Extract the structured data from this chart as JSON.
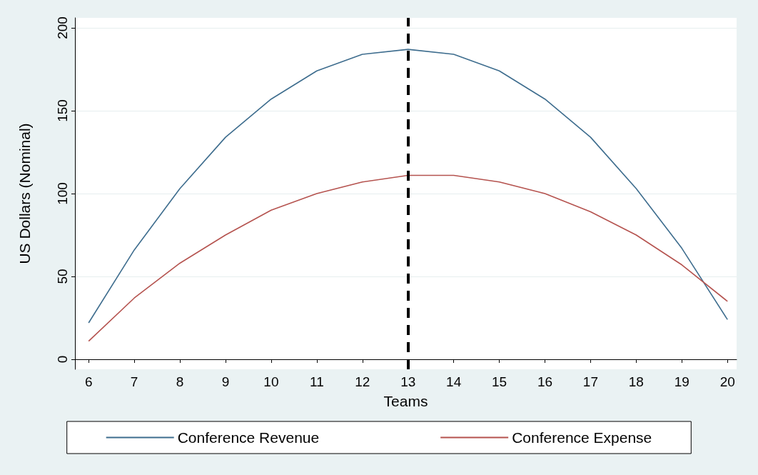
{
  "chart_data": {
    "type": "line",
    "xlabel": "Teams",
    "ylabel": "US Dollars (Nominal)",
    "x": [
      6,
      7,
      8,
      9,
      10,
      11,
      12,
      13,
      14,
      15,
      16,
      17,
      18,
      19,
      20
    ],
    "series": [
      {
        "name": "Conference Revenue",
        "color": "#3e6d8e",
        "values": [
          22,
          66,
          103,
          134,
          157,
          174,
          184,
          187,
          184,
          174,
          157,
          134,
          103,
          67,
          24
        ]
      },
      {
        "name": "Conference Expense",
        "color": "#b5534f",
        "values": [
          11,
          37,
          58,
          75,
          90,
          100,
          107,
          111,
          111,
          107,
          100,
          89,
          75,
          57,
          35
        ]
      }
    ],
    "xlim": [
      5.7,
      20.2
    ],
    "xticks": [
      6,
      7,
      8,
      9,
      10,
      11,
      12,
      13,
      14,
      15,
      16,
      17,
      18,
      19,
      20
    ],
    "ylim": [
      -6,
      206
    ],
    "yticks": [
      0,
      50,
      100,
      150,
      200
    ],
    "ref_lines": [
      {
        "axis": "x",
        "value": 13,
        "color": "#000000",
        "line_style": "dashed"
      }
    ],
    "grid": "y",
    "legend": "bottom",
    "marker": "none",
    "line_style": "solid"
  }
}
